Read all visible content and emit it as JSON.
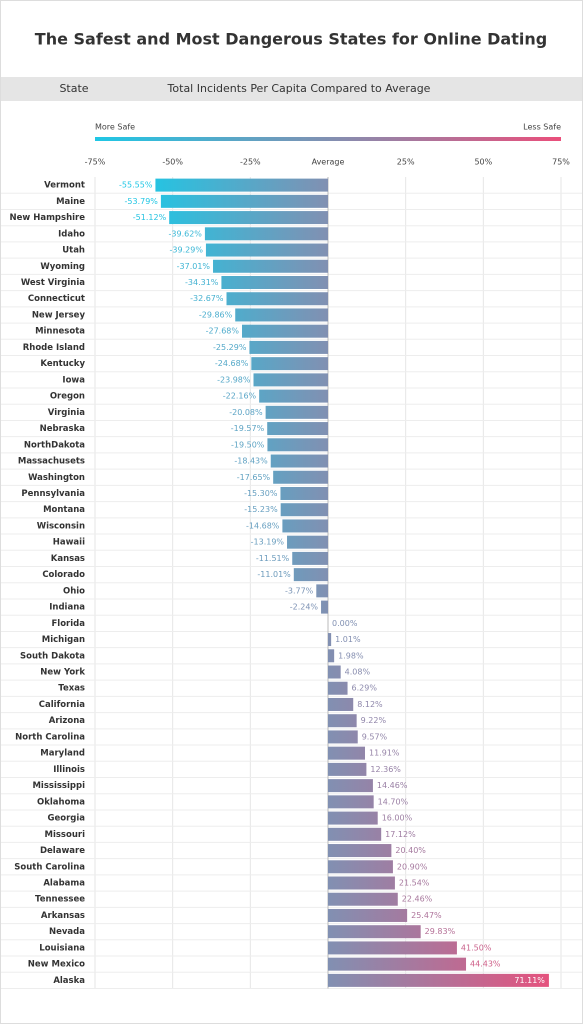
{
  "chart_data": {
    "type": "diverging-bar",
    "title": "The Safest and Most Dangerous States for Online Dating",
    "state_header": "State",
    "metric_header": "Total Incidents Per Capita Compared to Average",
    "legend_labels": [
      "More Safe",
      "Less Safe"
    ],
    "gradient": [
      "#1fc7e5",
      "#8190b2",
      "#ea4f7b"
    ],
    "grid": true,
    "xlim": [
      -75,
      75
    ],
    "xticks": [
      {
        "value": -75,
        "label": "-75%"
      },
      {
        "value": -50,
        "label": "-50%"
      },
      {
        "value": -25,
        "label": "-25%"
      },
      {
        "value": 0,
        "label": "Average"
      },
      {
        "value": 25,
        "label": "25%"
      },
      {
        "value": 50,
        "label": "50%"
      },
      {
        "value": 75,
        "label": "75%"
      }
    ],
    "categories": [
      "Vermont",
      "Maine",
      "New Hampshire",
      "Idaho",
      "Utah",
      "Wyoming",
      "West Virginia",
      "Connecticut",
      "New Jersey",
      "Minnesota",
      "Rhode Island",
      "Kentucky",
      "Iowa",
      "Oregon",
      "Virginia",
      "Nebraska",
      "NorthDakota",
      "Massachusets",
      "Washington",
      "Pennsylvania",
      "Montana",
      "Wisconsin",
      "Hawaii",
      "Kansas",
      "Colorado",
      "Ohio",
      "Indiana",
      "Florida",
      "Michigan",
      "South Dakota",
      "New York",
      "Texas",
      "California",
      "Arizona",
      "North Carolina",
      "Maryland",
      "Illinois",
      "Mississippi",
      "Oklahoma",
      "Georgia",
      "Missouri",
      "Delaware",
      "South Carolina",
      "Alabama",
      "Tennessee",
      "Arkansas",
      "Nevada",
      "Louisiana",
      "New Mexico",
      "Alaska"
    ],
    "values": [
      -55.55,
      -53.79,
      -51.12,
      -39.62,
      -39.29,
      -37.01,
      -34.31,
      -32.67,
      -29.86,
      -27.68,
      -25.29,
      -24.68,
      -23.98,
      -22.16,
      -20.08,
      -19.57,
      -19.5,
      -18.43,
      -17.65,
      -15.3,
      -15.23,
      -14.68,
      -13.19,
      -11.51,
      -11.01,
      -3.77,
      -2.24,
      0,
      1.01,
      1.98,
      4.08,
      6.29,
      8.12,
      9.22,
      9.57,
      11.91,
      12.36,
      14.46,
      14.7,
      16,
      17.12,
      20.4,
      20.9,
      21.54,
      22.46,
      25.47,
      29.83,
      41.5,
      44.43,
      71.11
    ],
    "value_labels": [
      "-55.55%",
      "-53.79%",
      "-51.12%",
      "-39.62%",
      "-39.29%",
      "-37.01%",
      "-34.31%",
      "-32.67%",
      "-29.86%",
      "-27.68%",
      "-25.29%",
      "-24.68%",
      "-23.98%",
      "-22.16%",
      "-20.08%",
      "-19.57%",
      "-19.50%",
      "-18.43%",
      "-17.65%",
      "-15.30%",
      "-15.23%",
      "-14.68%",
      "-13.19%",
      "-11.51%",
      "-11.01%",
      "-3.77%",
      "-2.24%",
      "0.00%",
      "1.01%",
      "1.98%",
      "4.08%",
      "6.29%",
      "8.12%",
      "9.22%",
      "9.57%",
      "11.91%",
      "12.36%",
      "14.46%",
      "14.70%",
      "16.00%",
      "17.12%",
      "20.40%",
      "20.90%",
      "21.54%",
      "22.46%",
      "25.47%",
      "29.83%",
      "41.50%",
      "44.43%",
      "71.11%"
    ]
  }
}
